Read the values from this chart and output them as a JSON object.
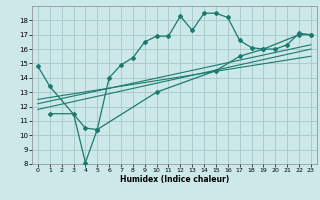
{
  "xlabel": "Humidex (Indice chaleur)",
  "xlim": [
    -0.5,
    23.5
  ],
  "ylim": [
    8,
    19
  ],
  "xticks": [
    0,
    1,
    2,
    3,
    4,
    5,
    6,
    7,
    8,
    9,
    10,
    11,
    12,
    13,
    14,
    15,
    16,
    17,
    18,
    19,
    20,
    21,
    22,
    23
  ],
  "yticks": [
    8,
    9,
    10,
    11,
    12,
    13,
    14,
    15,
    16,
    17,
    18
  ],
  "background_color": "#cce8e8",
  "grid_color": "#aacccc",
  "line_color": "#1a7a6e",
  "curve1_x": [
    0,
    1,
    4,
    5,
    6,
    7,
    8,
    9,
    10,
    11,
    12,
    13,
    14,
    15,
    16,
    17,
    18,
    19,
    20,
    21,
    22,
    23
  ],
  "curve1_y": [
    14.8,
    13.4,
    10.5,
    10.4,
    14.0,
    14.9,
    15.4,
    16.5,
    16.9,
    16.9,
    18.3,
    17.3,
    18.5,
    18.5,
    18.2,
    16.6,
    16.1,
    16.0,
    16.0,
    16.3,
    17.1,
    17.0
  ],
  "curve2_x": [
    1,
    3,
    4,
    5,
    10,
    15,
    17,
    19,
    22,
    23
  ],
  "curve2_y": [
    11.5,
    11.5,
    8.1,
    10.4,
    13.0,
    14.5,
    15.5,
    16.0,
    17.0,
    17.0
  ],
  "line1_x": [
    0,
    23
  ],
  "line1_y": [
    11.8,
    16.0
  ],
  "line2_x": [
    0,
    23
  ],
  "line2_y": [
    12.2,
    16.3
  ],
  "line3_x": [
    0,
    23
  ],
  "line3_y": [
    12.5,
    15.5
  ]
}
